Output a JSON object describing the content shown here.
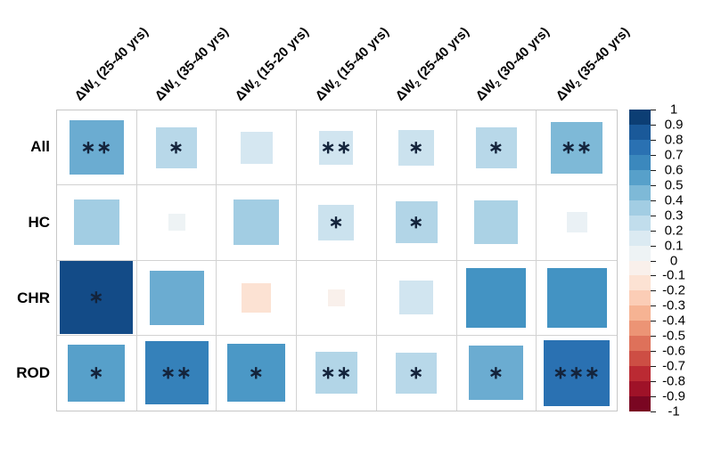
{
  "figure": {
    "background": "#ffffff",
    "grid_line_color": "#c9c9c9",
    "star_color": "#14243c"
  },
  "chart_data": {
    "type": "heatmap",
    "title": "",
    "rows": [
      "All",
      "HC",
      "CHR",
      "ROD"
    ],
    "columns": [
      "ΔW₁ (25-40 yrs)",
      "ΔW₁ (35-40 yrs)",
      "ΔW₂ (15-20 yrs)",
      "ΔW₂ (15-40 yrs)",
      "ΔW₂ (25-40 yrs)",
      "ΔW₂ (30-40 yrs)",
      "ΔW₂ (35-40 yrs)"
    ],
    "column_parts": [
      {
        "prefix": "ΔW",
        "sub": "1",
        "suffix": " (25-40 yrs)"
      },
      {
        "prefix": "ΔW",
        "sub": "1",
        "suffix": " (35-40 yrs)"
      },
      {
        "prefix": "ΔW",
        "sub": "2",
        "suffix": " (15-20 yrs)"
      },
      {
        "prefix": "ΔW",
        "sub": "2",
        "suffix": " (15-40 yrs)"
      },
      {
        "prefix": "ΔW",
        "sub": "2",
        "suffix": " (25-40 yrs)"
      },
      {
        "prefix": "ΔW",
        "sub": "2",
        "suffix": " (30-40 yrs)"
      },
      {
        "prefix": "ΔW",
        "sub": "2",
        "suffix": " (35-40 yrs)"
      }
    ],
    "series": [
      {
        "name": "All",
        "values": [
          0.5,
          0.28,
          0.18,
          0.2,
          0.22,
          0.28,
          0.45
        ],
        "significance": [
          "**",
          "*",
          "",
          "**",
          "*",
          "*",
          "**"
        ]
      },
      {
        "name": "HC",
        "values": [
          0.35,
          0.05,
          0.35,
          0.22,
          0.3,
          0.32,
          0.07
        ],
        "significance": [
          "",
          "",
          "",
          "*",
          "*",
          "",
          ""
        ]
      },
      {
        "name": "CHR",
        "values": [
          0.9,
          0.5,
          -0.15,
          -0.05,
          0.2,
          0.6,
          0.6
        ],
        "significance": [
          "*",
          "",
          "",
          "",
          "",
          "",
          ""
        ]
      },
      {
        "name": "ROD",
        "values": [
          0.55,
          0.68,
          0.58,
          0.3,
          0.28,
          0.5,
          0.75
        ],
        "significance": [
          "*",
          "**",
          "*",
          "**",
          "*",
          "*",
          "***"
        ]
      }
    ],
    "value_range": [
      -1,
      1
    ],
    "grid": true,
    "legend_position": "right",
    "colormap": "blue-white-red (RdBu reversed)"
  },
  "legend": {
    "tick_labels": [
      "1",
      "0.9",
      "0.8",
      "0.7",
      "0.6",
      "0.5",
      "0.4",
      "0.3",
      "0.2",
      "0.1",
      "0",
      "-0.1",
      "-0.2",
      "-0.3",
      "-0.4",
      "-0.5",
      "-0.6",
      "-0.7",
      "-0.8",
      "-0.9",
      "-1"
    ],
    "palette_stops": [
      {
        "v": -1.0,
        "c": "#67001f"
      },
      {
        "v": -0.8,
        "c": "#b2182b"
      },
      {
        "v": -0.6,
        "c": "#d6604d"
      },
      {
        "v": -0.4,
        "c": "#f4a582"
      },
      {
        "v": -0.2,
        "c": "#fddbc7"
      },
      {
        "v": 0.0,
        "c": "#f7f7f7"
      },
      {
        "v": 0.2,
        "c": "#d1e5f0"
      },
      {
        "v": 0.4,
        "c": "#92c5de"
      },
      {
        "v": 0.6,
        "c": "#4393c3"
      },
      {
        "v": 0.8,
        "c": "#2166ac"
      },
      {
        "v": 1.0,
        "c": "#053061"
      }
    ]
  }
}
